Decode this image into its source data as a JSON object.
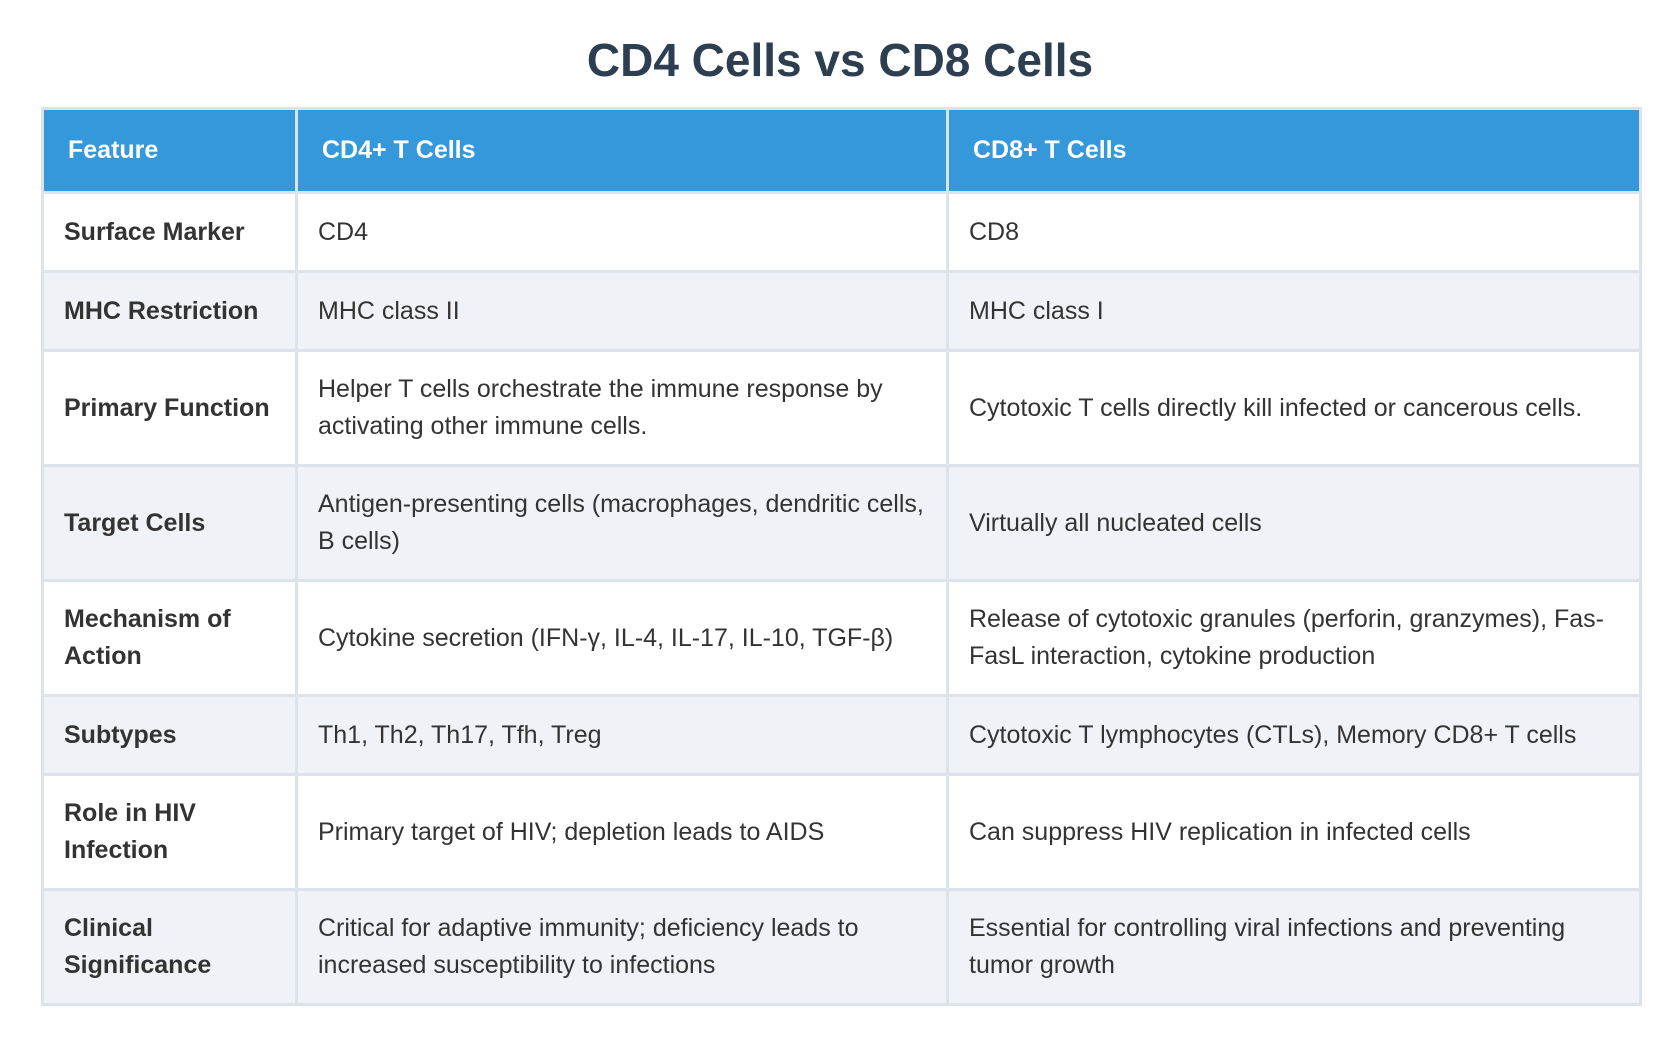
{
  "header": {
    "title": "CD4 Cells vs CD8 Cells"
  },
  "table": {
    "columns": [
      "Feature",
      "CD4+ T Cells",
      "CD8+ T Cells"
    ],
    "rows": [
      [
        "Surface Marker",
        "CD4",
        "CD8"
      ],
      [
        "MHC Restriction",
        "MHC class II",
        "MHC class I"
      ],
      [
        "Primary Function",
        "Helper T cells orchestrate the immune response by activating other immune cells.",
        "Cytotoxic T cells directly kill infected or cancerous cells."
      ],
      [
        "Target Cells",
        "Antigen-presenting cells (macrophages, dendritic cells, B cells)",
        "Virtually all nucleated cells"
      ],
      [
        "Mechanism of Action",
        "Cytokine secretion (IFN-γ, IL-4, IL-17, IL-10, TGF-β)",
        "Release of cytotoxic granules (perforin, granzymes), Fas-FasL interaction, cytokine production"
      ],
      [
        "Subtypes",
        "Th1, Th2, Th17, Tfh, Treg",
        "Cytotoxic T lymphocytes (CTLs), Memory CD8+ T cells"
      ],
      [
        "Role in HIV Infection",
        "Primary target of HIV; depletion leads to AIDS",
        "Can suppress HIV replication in infected cells"
      ],
      [
        "Clinical Significance",
        "Critical for adaptive immunity; deficiency leads to increased susceptibility to infections",
        "Essential for controlling viral infections and preventing tumor growth"
      ]
    ]
  }
}
